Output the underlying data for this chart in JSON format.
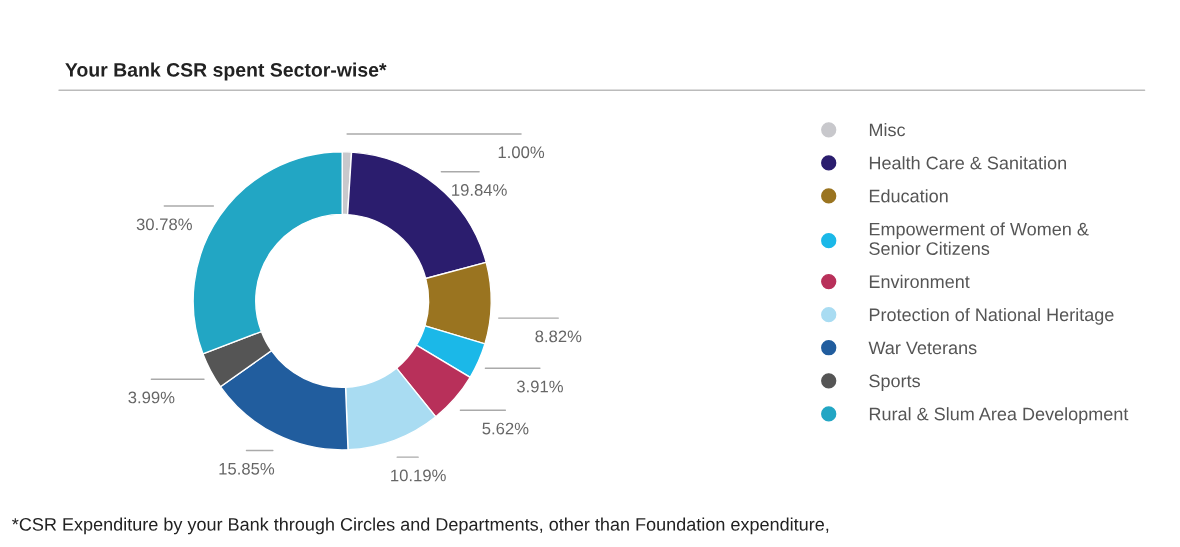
{
  "chart_data": {
    "type": "donut",
    "title": "Your Bank CSR spent Sector-wise*",
    "categories": [
      "Misc",
      "Health Care & Sanitation",
      "Education",
      "Empowerment of Women &\nSenior Citizens",
      "Environment",
      "Protection of National Heritage",
      "War Veterans",
      "Sports",
      "Rural & Slum Area Development"
    ],
    "values": [
      1.0,
      19.84,
      8.82,
      3.91,
      5.62,
      10.19,
      15.85,
      3.99,
      30.78
    ],
    "value_labels": [
      "1.00%",
      "19.84%",
      "8.82%",
      "3.91%",
      "5.62%",
      "10.19%",
      "15.85%",
      "3.99%",
      "30.78%"
    ],
    "colors": [
      "#c8c8cc",
      "#2b1d6e",
      "#9a7420",
      "#1bb8e8",
      "#b8305a",
      "#a9dcf2",
      "#215d9e",
      "#555555",
      "#22a6c4"
    ],
    "legend": "right",
    "annotations": [
      "*CSR Expenditure by your Bank through Circles and Departments, other than Foundation expenditure,"
    ]
  }
}
